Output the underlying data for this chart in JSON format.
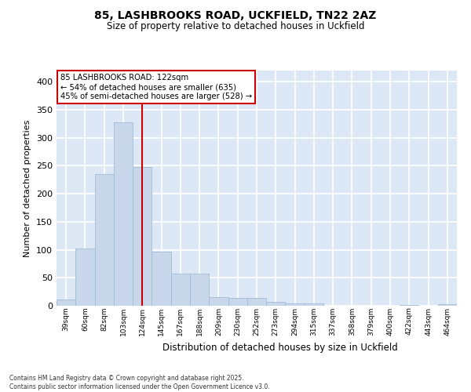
{
  "title1": "85, LASHBROOKS ROAD, UCKFIELD, TN22 2AZ",
  "title2": "Size of property relative to detached houses in Uckfield",
  "xlabel": "Distribution of detached houses by size in Uckfield",
  "ylabel": "Number of detached properties",
  "categories": [
    "39sqm",
    "60sqm",
    "82sqm",
    "103sqm",
    "124sqm",
    "145sqm",
    "167sqm",
    "188sqm",
    "209sqm",
    "230sqm",
    "252sqm",
    "273sqm",
    "294sqm",
    "315sqm",
    "337sqm",
    "358sqm",
    "379sqm",
    "400sqm",
    "422sqm",
    "443sqm",
    "464sqm"
  ],
  "values": [
    11,
    102,
    235,
    328,
    248,
    96,
    57,
    57,
    15,
    14,
    14,
    7,
    4,
    4,
    0,
    0,
    0,
    0,
    2,
    0,
    3
  ],
  "bar_color": "#c8d8ea",
  "bar_edge_color": "#a0bcd4",
  "plot_bg_color": "#dce8f5",
  "fig_bg_color": "#ffffff",
  "grid_color": "#ffffff",
  "vline_x_index": 4,
  "vline_color": "#cc0000",
  "annotation_line1": "85 LASHBROOKS ROAD: 122sqm",
  "annotation_line2": "← 54% of detached houses are smaller (635)",
  "annotation_line3": "45% of semi-detached houses are larger (528) →",
  "annotation_box_edgecolor": "#cc0000",
  "annotation_box_facecolor": "#ffffff",
  "ylim": [
    0,
    420
  ],
  "yticks": [
    0,
    50,
    100,
    150,
    200,
    250,
    300,
    350,
    400
  ],
  "footnote": "Contains HM Land Registry data © Crown copyright and database right 2025.\nContains public sector information licensed under the Open Government Licence v3.0."
}
